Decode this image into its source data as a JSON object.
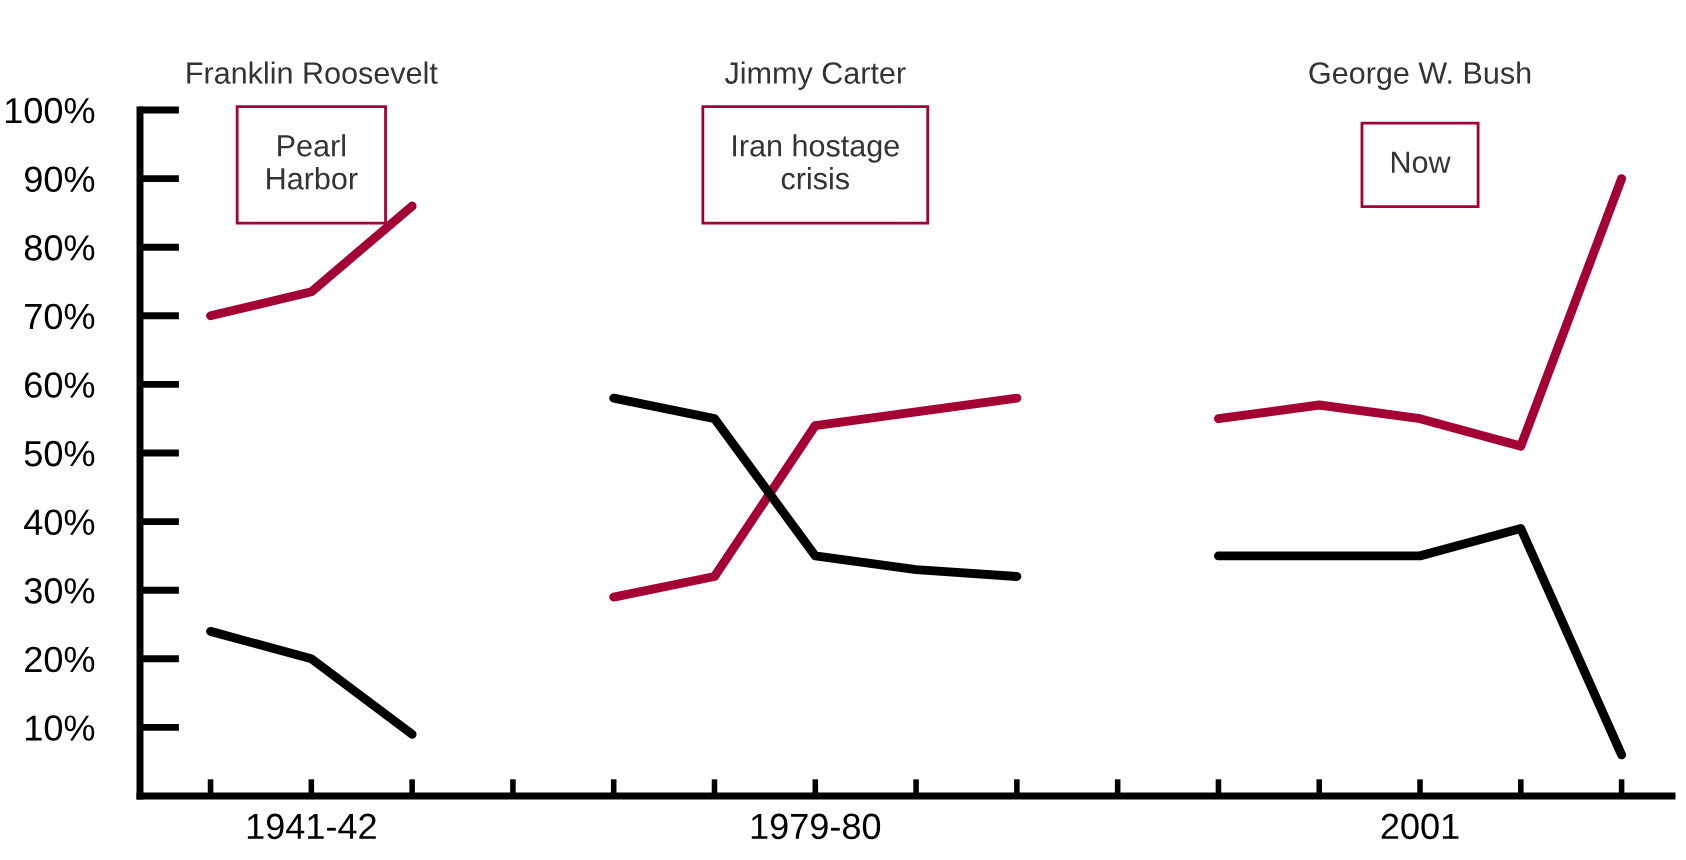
{
  "chart_data": {
    "type": "line",
    "categories": [
      null,
      "1941-42",
      null,
      null,
      null,
      null,
      "1979-80",
      null,
      null,
      null,
      null,
      null,
      "2001",
      null,
      null
    ],
    "series": [
      {
        "color": "#a50034",
        "values": [
          70,
          73.5,
          86,
          null,
          29,
          32,
          54,
          56,
          58,
          null,
          55,
          57,
          55,
          51,
          90
        ]
      },
      {
        "color": "#000000",
        "values": [
          24,
          20,
          9,
          null,
          58,
          55,
          35,
          33,
          32,
          null,
          35,
          35,
          35,
          39,
          6
        ]
      }
    ],
    "ylim": [
      0,
      100
    ],
    "yticks": [
      {
        "value": 10,
        "label": "10%"
      },
      {
        "value": 20,
        "label": "20%"
      },
      {
        "value": 30,
        "label": "30%"
      },
      {
        "value": 40,
        "label": "40%"
      },
      {
        "value": 50,
        "label": "50%"
      },
      {
        "value": 60,
        "label": "60%"
      },
      {
        "value": 70,
        "label": "70%"
      },
      {
        "value": 80,
        "label": "80%"
      },
      {
        "value": 90,
        "label": "90%"
      },
      {
        "value": 100,
        "label": "100%"
      }
    ],
    "annotations": [
      "Franklin Roosevelt",
      "Pearl\nHarbor",
      "Jimmy Carter",
      "Iran hostage\ncrisis",
      "George W. Bush",
      "Now"
    ]
  }
}
